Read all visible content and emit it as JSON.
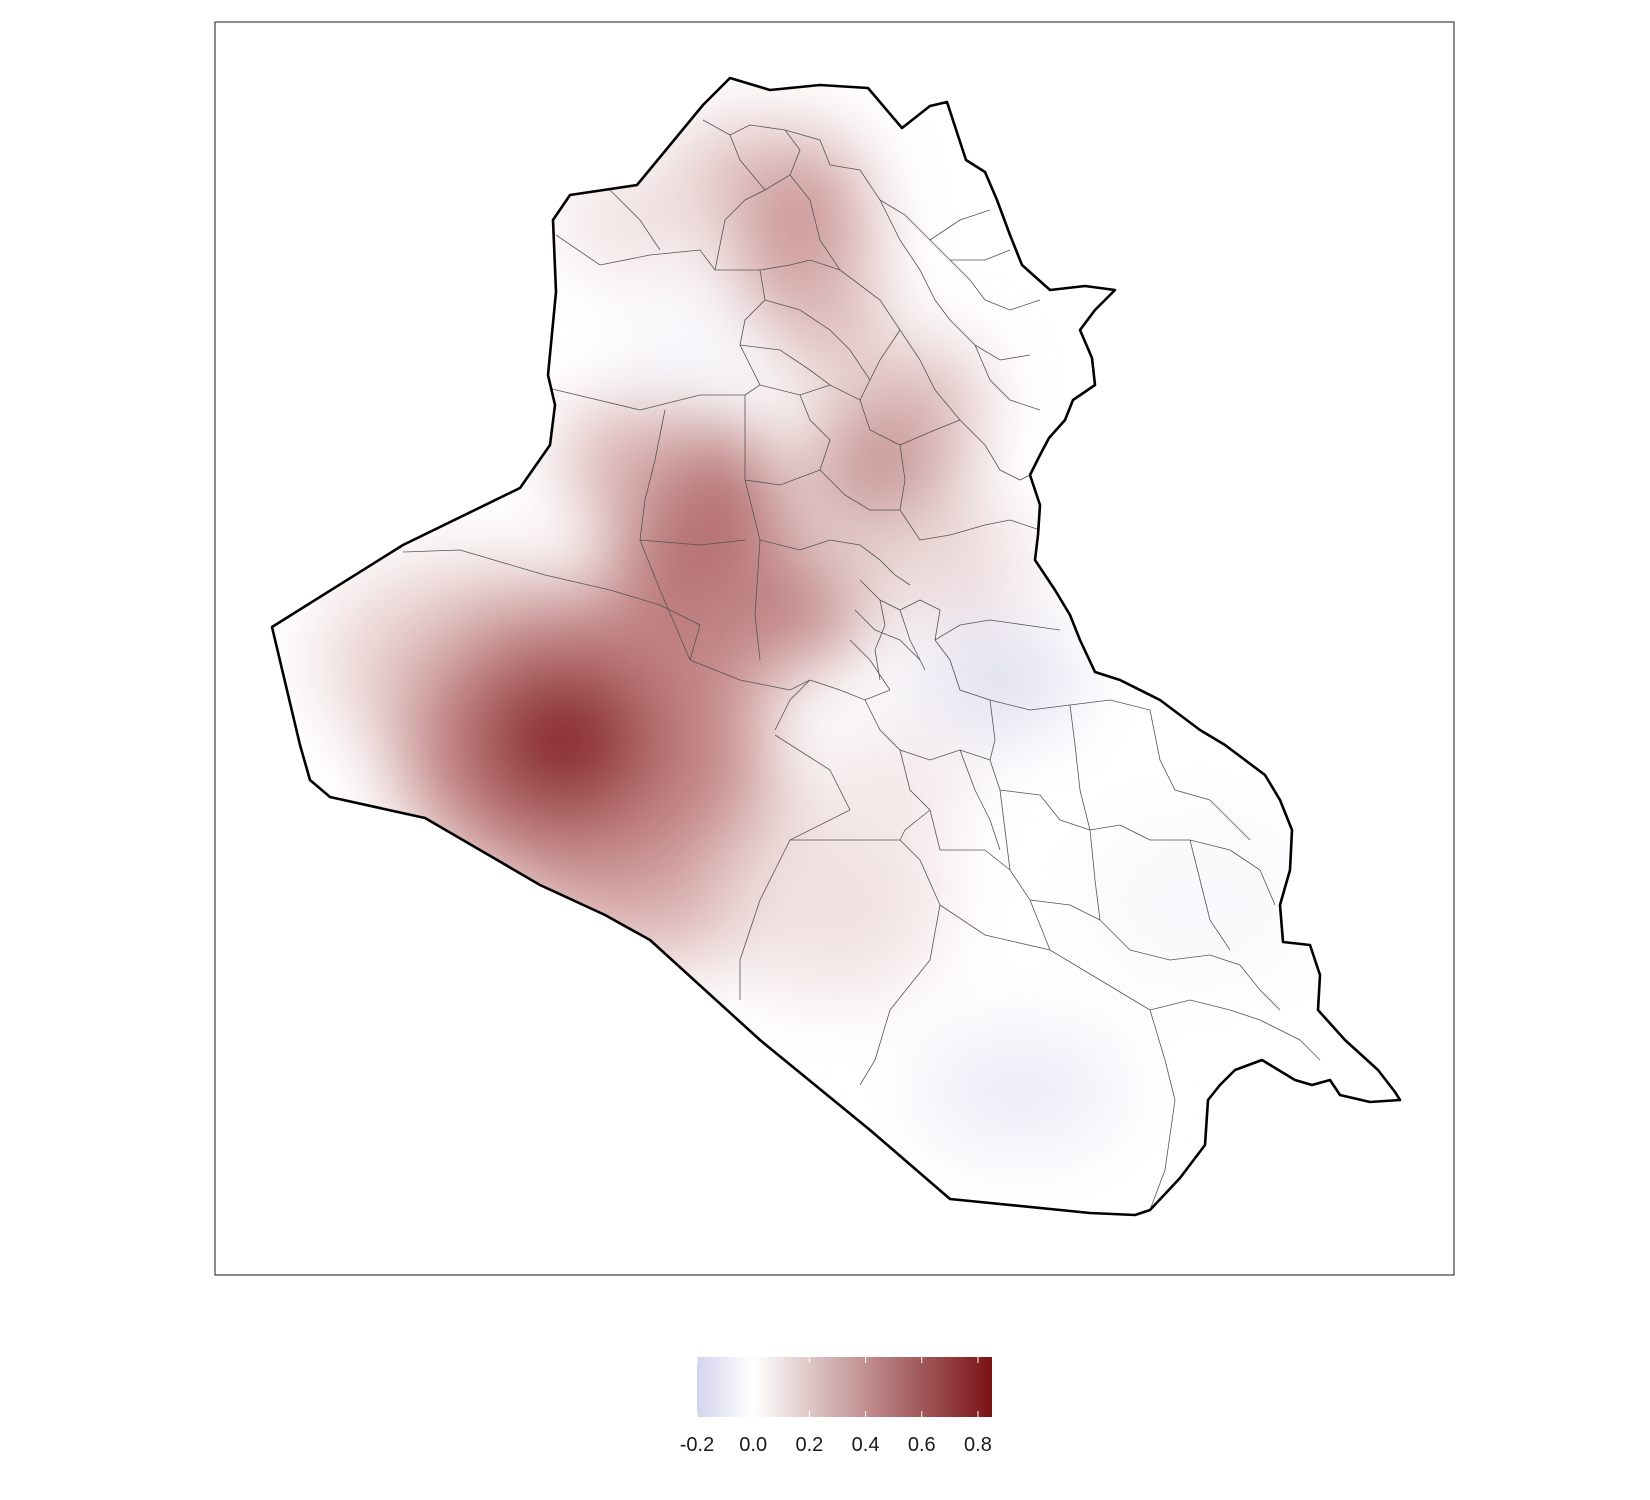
{
  "map": {
    "variable": "",
    "country_outline": "Iraq",
    "district_boundaries": "shown",
    "surface_peaks": [
      {
        "area": "western Anbar desert",
        "value": 0.8
      },
      {
        "area": "central Anbar",
        "value": 0.55
      },
      {
        "area": "north (Ninawa/Duhok)",
        "value": 0.45
      },
      {
        "area": "Kirkuk/Salah ad-Din",
        "value": 0.4
      },
      {
        "area": "Diyala",
        "value": -0.1
      },
      {
        "area": "Muthanna",
        "value": -0.05
      }
    ]
  },
  "legend": {
    "range": [
      -0.2,
      0.85
    ],
    "ticks": [
      "-0.2",
      "0.0",
      "0.2",
      "0.4",
      "0.6",
      "0.8"
    ],
    "tick_values": [
      -0.2,
      0.0,
      0.2,
      0.4,
      0.6,
      0.8
    ],
    "colors": {
      "low": "#d4d4ee",
      "mid": "#ffffff",
      "high": "#7a1215"
    }
  }
}
